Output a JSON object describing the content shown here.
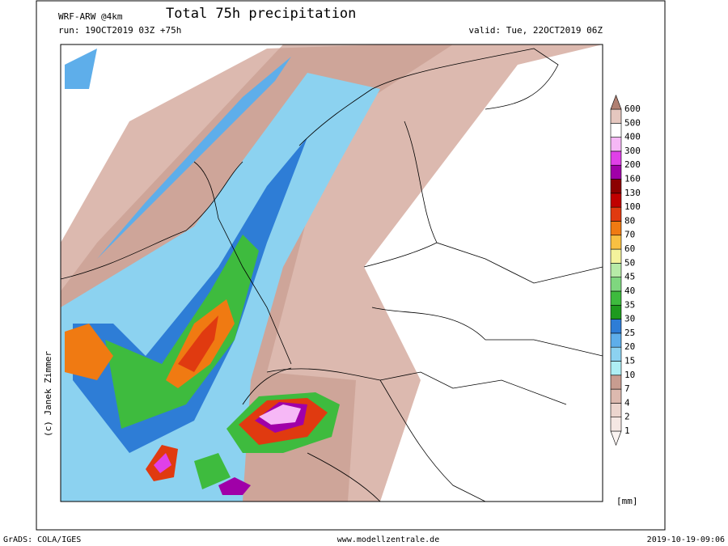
{
  "header": {
    "model": "WRF-ARW @4km",
    "title": "Total 75h precipitation",
    "run": "run: 19OCT2019 03Z +75h",
    "valid": "valid: Tue, 22OCT2019 06Z"
  },
  "credit": "(c) Janek Zimmer",
  "legend": {
    "unit": "[mm]",
    "levels": [
      1,
      2,
      4,
      7,
      10,
      15,
      20,
      25,
      30,
      35,
      40,
      45,
      50,
      60,
      70,
      80,
      100,
      130,
      160,
      200,
      300,
      400,
      500,
      600
    ],
    "colors": [
      "#fbf4f2",
      "#f5e7e3",
      "#ecd5ce",
      "#dcb9af",
      "#c89c90",
      "#aeeef4",
      "#8cd2f0",
      "#5eaeea",
      "#2e7dd6",
      "#1e9a1e",
      "#3ebb3e",
      "#7fd77f",
      "#b7eba7",
      "#f4f39c",
      "#f8c042",
      "#f07a12",
      "#e03a10",
      "#c00000",
      "#8c0000",
      "#a000a8",
      "#e040e8",
      "#f6b8f6",
      "#ffffff",
      "#e5c7bf",
      "#b08072"
    ]
  },
  "footer": {
    "left": "GrADS: COLA/IGES",
    "center": "www.modellzentrale.de",
    "right": "2019-10-19-09:06"
  }
}
